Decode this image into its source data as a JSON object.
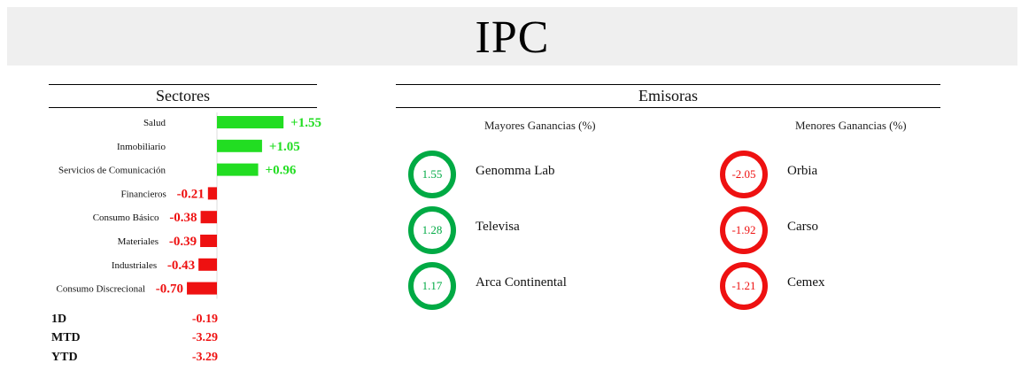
{
  "title": "IPC",
  "sectores": {
    "heading": "Sectores",
    "colors": {
      "positive": "#22dd22",
      "negative": "#ee1111"
    },
    "items": [
      {
        "label": "Salud",
        "value": 1.55,
        "display": "+1.55"
      },
      {
        "label": "Inmobiliario",
        "value": 1.05,
        "display": "+1.05"
      },
      {
        "label": "Servicios de Comunicación",
        "value": 0.96,
        "display": "+0.96"
      },
      {
        "label": "Financieros",
        "value": -0.21,
        "display": "-0.21"
      },
      {
        "label": "Consumo Básico",
        "value": -0.38,
        "display": "-0.38"
      },
      {
        "label": "Materiales",
        "value": -0.39,
        "display": "-0.39"
      },
      {
        "label": "Industriales",
        "value": -0.43,
        "display": "-0.43"
      },
      {
        "label": "Consumo Discrecional",
        "value": -0.7,
        "display": "-0.70"
      }
    ]
  },
  "periods": [
    {
      "label": "1D",
      "value": "-0.19"
    },
    {
      "label": "MTD",
      "value": "-3.29"
    },
    {
      "label": "YTD",
      "value": "-3.29"
    }
  ],
  "emisoras": {
    "heading": "Emisoras",
    "gainers": {
      "heading": "Mayores Ganancias (%)",
      "items": [
        {
          "value": "1.55",
          "name": "Genomma Lab"
        },
        {
          "value": "1.28",
          "name": "Televisa"
        },
        {
          "value": "1.17",
          "name": "Arca Continental"
        }
      ]
    },
    "losers": {
      "heading": "Menores Ganancias (%)",
      "items": [
        {
          "value": "-2.05",
          "name": "Orbia"
        },
        {
          "value": "-1.92",
          "name": "Carso"
        },
        {
          "value": "-1.21",
          "name": "Cemex"
        }
      ]
    }
  },
  "chart_data": {
    "type": "bar",
    "orientation": "horizontal",
    "categories": [
      "Salud",
      "Inmobiliario",
      "Servicios de Comunicación",
      "Financieros",
      "Consumo Básico",
      "Materiales",
      "Industriales",
      "Consumo Discrecional"
    ],
    "values": [
      1.55,
      1.05,
      0.96,
      -0.21,
      -0.38,
      -0.39,
      -0.43,
      -0.7
    ],
    "title": "Sectores"
  }
}
